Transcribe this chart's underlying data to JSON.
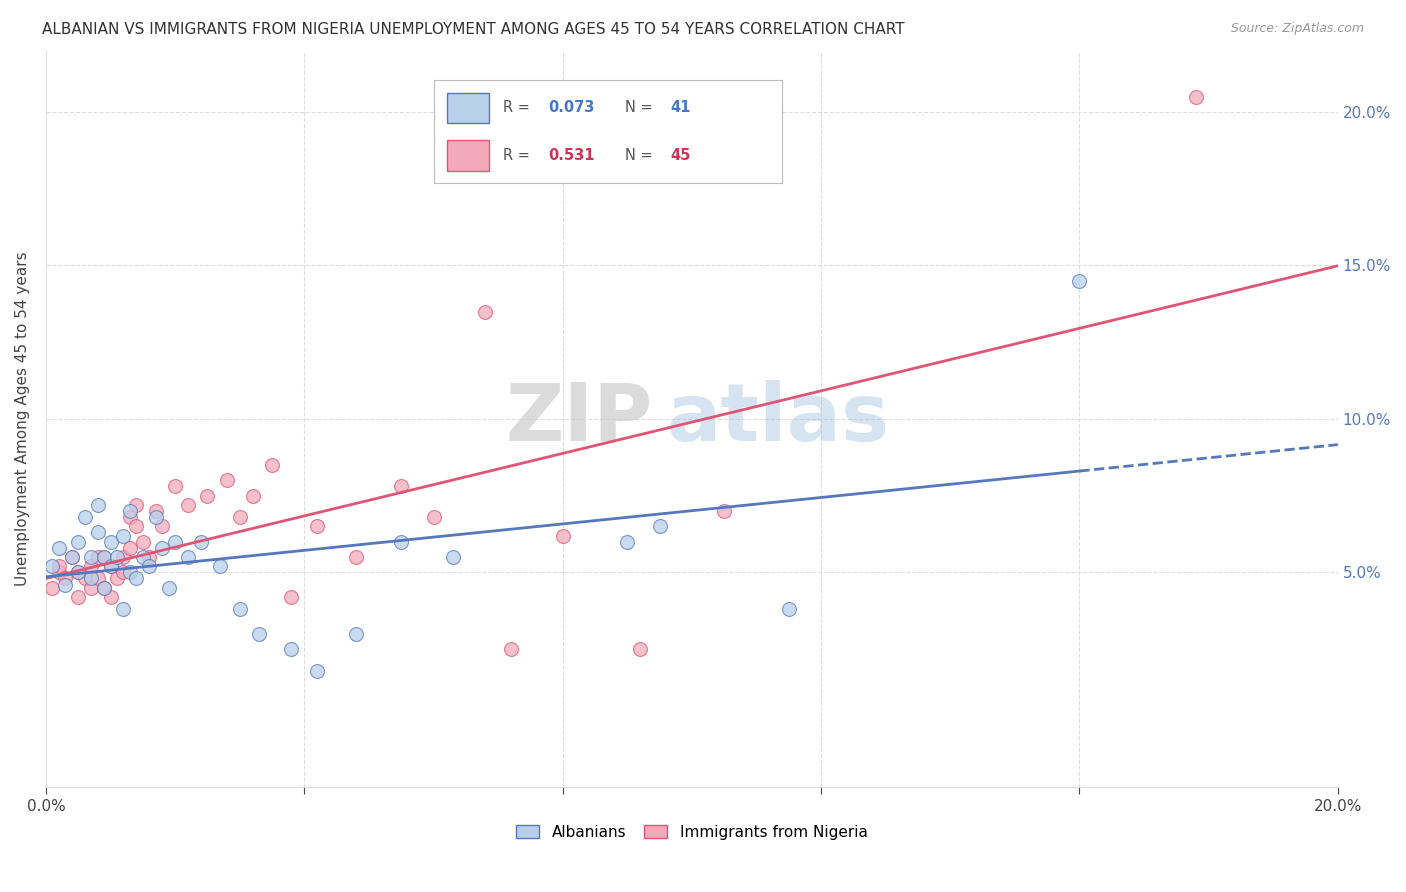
{
  "title": "ALBANIAN VS IMMIGRANTS FROM NIGERIA UNEMPLOYMENT AMONG AGES 45 TO 54 YEARS CORRELATION CHART",
  "source": "Source: ZipAtlas.com",
  "ylabel": "Unemployment Among Ages 45 to 54 years",
  "legend_label1": "Albanians",
  "legend_label2": "Immigrants from Nigeria",
  "R1": "0.073",
  "N1": "41",
  "R2": "0.531",
  "N2": "45",
  "color1": "#b8d0ea",
  "color2": "#f2aabb",
  "line1_color": "#5577bb",
  "line2_color": "#e05575",
  "watermark_zip": "ZIP",
  "watermark_atlas": "atlas",
  "xmin": 0.0,
  "xmax": 0.2,
  "ymin": -0.02,
  "ymax": 0.22,
  "yticks": [
    0.05,
    0.1,
    0.15,
    0.2
  ],
  "ytick_labels": [
    "5.0%",
    "10.0%",
    "15.0%",
    "20.0%"
  ],
  "albanians_x": [
    0.001,
    0.002,
    0.003,
    0.004,
    0.005,
    0.005,
    0.006,
    0.007,
    0.007,
    0.008,
    0.008,
    0.009,
    0.009,
    0.01,
    0.01,
    0.011,
    0.012,
    0.012,
    0.013,
    0.013,
    0.014,
    0.015,
    0.016,
    0.017,
    0.018,
    0.019,
    0.02,
    0.022,
    0.024,
    0.027,
    0.03,
    0.033,
    0.038,
    0.042,
    0.048,
    0.055,
    0.063,
    0.09,
    0.095,
    0.115,
    0.16
  ],
  "albanians_y": [
    0.052,
    0.058,
    0.046,
    0.055,
    0.06,
    0.05,
    0.068,
    0.055,
    0.048,
    0.063,
    0.072,
    0.055,
    0.045,
    0.06,
    0.052,
    0.055,
    0.038,
    0.062,
    0.05,
    0.07,
    0.048,
    0.055,
    0.052,
    0.068,
    0.058,
    0.045,
    0.06,
    0.055,
    0.06,
    0.052,
    0.038,
    0.03,
    0.025,
    0.018,
    0.03,
    0.06,
    0.055,
    0.06,
    0.065,
    0.038,
    0.145
  ],
  "nigeria_x": [
    0.001,
    0.002,
    0.002,
    0.003,
    0.004,
    0.005,
    0.005,
    0.006,
    0.007,
    0.007,
    0.008,
    0.008,
    0.009,
    0.009,
    0.01,
    0.01,
    0.011,
    0.012,
    0.012,
    0.013,
    0.013,
    0.014,
    0.014,
    0.015,
    0.016,
    0.017,
    0.018,
    0.02,
    0.022,
    0.025,
    0.028,
    0.03,
    0.032,
    0.035,
    0.038,
    0.042,
    0.048,
    0.055,
    0.06,
    0.068,
    0.072,
    0.08,
    0.092,
    0.105,
    0.178
  ],
  "nigeria_y": [
    0.045,
    0.05,
    0.052,
    0.048,
    0.055,
    0.042,
    0.05,
    0.048,
    0.052,
    0.045,
    0.055,
    0.048,
    0.055,
    0.045,
    0.052,
    0.042,
    0.048,
    0.055,
    0.05,
    0.058,
    0.068,
    0.065,
    0.072,
    0.06,
    0.055,
    0.07,
    0.065,
    0.078,
    0.072,
    0.075,
    0.08,
    0.068,
    0.075,
    0.085,
    0.042,
    0.065,
    0.055,
    0.078,
    0.068,
    0.135,
    0.025,
    0.062,
    0.025,
    0.07,
    0.205
  ],
  "line1_xend": 0.2,
  "line2_xend": 0.2
}
